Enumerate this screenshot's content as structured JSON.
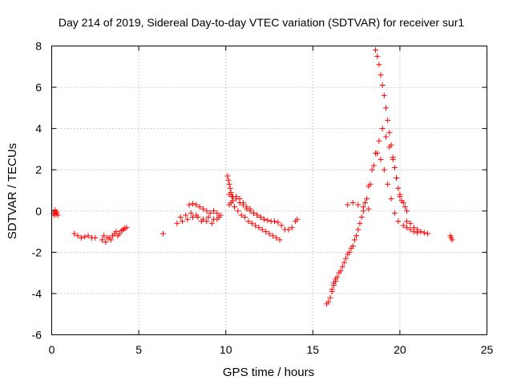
{
  "chart_data": {
    "type": "scatter",
    "title": "Day 214 of 2019, Sidereal Day-to-day VTEC variation (SDTVAR) for receiver sur1",
    "xlabel": "GPS time / hours",
    "ylabel": "SDTVAR / TECUs",
    "xlim": [
      0,
      25
    ],
    "ylim": [
      -6,
      8
    ],
    "xticks": [
      0,
      5,
      10,
      15,
      20,
      25
    ],
    "yticks": [
      -6,
      -4,
      -2,
      0,
      2,
      4,
      6,
      8
    ],
    "xtick_labels": [
      "0",
      "5",
      "10",
      "15",
      "20",
      "25"
    ],
    "ytick_labels": [
      "-6",
      "-4",
      "-2",
      "0",
      "2",
      "4",
      "6",
      "8"
    ],
    "grid": true,
    "marker": "plus",
    "color": "#ff0000",
    "series": [
      {
        "name": "seg1",
        "x": [
          0.1,
          0.15,
          0.2,
          0.25,
          0.3,
          0.35
        ],
        "y": [
          -0.1,
          -0.2,
          0.05,
          -0.15,
          -0.05,
          -0.2
        ]
      },
      {
        "name": "seg2",
        "x": [
          1.3,
          1.5,
          1.7,
          1.9,
          2.1,
          2.3,
          2.5
        ],
        "y": [
          -1.1,
          -1.2,
          -1.3,
          -1.25,
          -1.2,
          -1.3,
          -1.3
        ]
      },
      {
        "name": "seg3",
        "x": [
          2.9,
          3.1,
          3.3,
          3.5,
          3.7,
          3.9,
          4.1,
          4.3
        ],
        "y": [
          -1.4,
          -1.5,
          -1.3,
          -1.2,
          -1.0,
          -1.1,
          -0.9,
          -0.8
        ]
      },
      {
        "name": "seg4",
        "x": [
          3.0,
          3.2,
          3.4,
          3.6,
          3.8,
          4.0,
          4.2
        ],
        "y": [
          -1.2,
          -1.3,
          -1.4,
          -1.1,
          -1.2,
          -0.95,
          -0.85
        ]
      },
      {
        "name": "seg5",
        "x": [
          6.4
        ],
        "y": [
          -1.1
        ]
      },
      {
        "name": "seg6",
        "x": [
          7.2,
          7.5,
          7.8,
          8.1,
          8.4,
          8.7,
          9.0,
          9.3,
          9.6
        ],
        "y": [
          -0.6,
          -0.5,
          -0.4,
          -0.3,
          -0.3,
          -0.4,
          -0.3,
          -0.4,
          -0.3
        ]
      },
      {
        "name": "seg7",
        "x": [
          7.4,
          7.7,
          8.0,
          8.3,
          8.6,
          8.9,
          9.2,
          9.5
        ],
        "y": [
          -0.3,
          -0.2,
          -0.1,
          -0.2,
          -0.5,
          -0.5,
          -0.6,
          -0.4
        ]
      },
      {
        "name": "seg8",
        "x": [
          7.9,
          8.1,
          8.3,
          8.5,
          8.7,
          8.9,
          9.1,
          9.3,
          9.5,
          9.7
        ],
        "y": [
          0.3,
          0.35,
          0.3,
          0.2,
          0.1,
          0.0,
          -0.1,
          0.0,
          -0.1,
          -0.2
        ]
      },
      {
        "name": "seg9",
        "x": [
          10.1,
          10.15,
          10.2,
          10.25,
          10.3,
          10.35
        ],
        "y": [
          1.7,
          1.5,
          1.3,
          1.1,
          0.9,
          0.7
        ]
      },
      {
        "name": "seg10",
        "x": [
          10.2,
          10.4,
          10.6,
          10.8,
          11.0,
          11.2,
          11.4,
          11.6,
          11.8,
          12.0,
          12.2,
          12.4,
          12.6,
          12.8,
          13.0
        ],
        "y": [
          0.8,
          0.7,
          0.6,
          0.4,
          0.3,
          0.1,
          0.0,
          -0.1,
          -0.2,
          -0.3,
          -0.4,
          -0.45,
          -0.5,
          -0.5,
          -0.55
        ]
      },
      {
        "name": "seg11",
        "x": [
          10.3,
          10.5,
          10.7,
          10.9,
          11.1,
          11.3,
          11.5,
          11.7,
          11.9,
          12.1,
          12.3,
          12.5,
          12.7,
          12.9,
          13.1
        ],
        "y": [
          0.4,
          0.2,
          0.0,
          -0.2,
          -0.3,
          -0.5,
          -0.6,
          -0.7,
          -0.8,
          -0.9,
          -1.0,
          -1.1,
          -1.2,
          -1.3,
          -1.4
        ]
      },
      {
        "name": "seg12",
        "x": [
          10.2,
          10.4,
          10.6,
          10.8,
          11.0,
          11.2,
          11.4,
          11.6,
          11.8,
          12.0,
          12.2
        ],
        "y": [
          0.3,
          0.5,
          0.7,
          0.6,
          0.4,
          0.2,
          0.1,
          -0.1,
          -0.2,
          -0.3,
          -0.4
        ]
      },
      {
        "name": "seg13",
        "x": [
          13.2,
          13.4,
          13.6,
          13.8,
          14.0,
          14.1
        ],
        "y": [
          -0.7,
          -0.9,
          -0.9,
          -0.8,
          -0.5,
          -0.4
        ]
      },
      {
        "name": "seg14",
        "x": [
          15.8,
          15.9,
          16.0,
          16.1,
          16.2,
          16.3,
          16.4,
          16.6,
          16.8,
          17.0,
          17.2,
          17.4,
          17.6,
          17.8,
          18.0,
          18.2,
          18.4,
          18.6,
          18.8,
          19.0,
          19.2,
          19.4,
          19.6,
          19.8,
          20.0
        ],
        "y": [
          -4.5,
          -4.4,
          -4.2,
          -3.9,
          -3.6,
          -3.4,
          -3.2,
          -2.9,
          -2.5,
          -2.1,
          -1.8,
          -1.4,
          -0.9,
          -0.3,
          0.4,
          1.2,
          2.0,
          2.8,
          3.4,
          4.0,
          3.6,
          3.1,
          2.5,
          1.6,
          0.8
        ]
      },
      {
        "name": "seg15",
        "x": [
          16.1,
          16.2,
          16.3,
          16.5,
          16.7,
          16.9,
          17.1,
          17.3,
          17.5,
          17.7,
          17.9,
          18.1,
          18.3,
          18.5,
          18.7,
          18.9,
          19.1,
          19.3,
          19.5,
          19.7,
          19.9
        ],
        "y": [
          -3.8,
          -3.5,
          -3.3,
          -3.0,
          -2.7,
          -2.3,
          -2.0,
          -1.7,
          -1.2,
          -0.6,
          0.0,
          0.6,
          1.3,
          2.2,
          2.8,
          2.5,
          2.0,
          1.3,
          0.6,
          -0.1,
          -0.5
        ]
      },
      {
        "name": "seg16",
        "x": [
          17.0,
          17.3,
          17.6,
          17.9,
          18.2
        ],
        "y": [
          0.3,
          0.4,
          0.3,
          0.2,
          0.1
        ]
      },
      {
        "name": "seg17",
        "x": [
          18.6,
          18.7,
          18.8,
          18.9,
          19.0,
          19.1,
          19.2,
          19.3,
          19.4,
          19.5,
          19.6,
          19.7,
          19.8,
          19.9,
          20.0,
          20.1,
          20.2,
          20.3,
          20.4
        ],
        "y": [
          7.8,
          7.5,
          7.1,
          6.6,
          6.1,
          5.6,
          5.0,
          4.4,
          3.8,
          3.2,
          2.6,
          2.1,
          1.6,
          1.1,
          0.7,
          0.5,
          0.4,
          0.2,
          0.0
        ]
      },
      {
        "name": "seg18",
        "x": [
          20.4,
          20.6,
          20.8,
          21.0,
          21.2,
          21.4,
          21.6
        ],
        "y": [
          -0.5,
          -0.6,
          -0.8,
          -0.9,
          -1.0,
          -1.05,
          -1.1
        ]
      },
      {
        "name": "seg19",
        "x": [
          20.2,
          20.4,
          20.6,
          20.8,
          21.0
        ],
        "y": [
          -0.7,
          -0.8,
          -0.9,
          -1.0,
          -1.05
        ]
      },
      {
        "name": "seg20",
        "x": [
          22.9,
          22.95,
          23.0
        ],
        "y": [
          -1.2,
          -1.3,
          -1.4
        ]
      }
    ]
  }
}
